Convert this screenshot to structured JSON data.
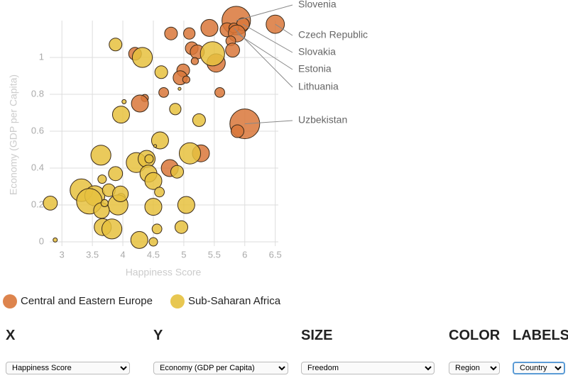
{
  "chart_data": {
    "type": "scatter",
    "x_label": "Happiness Score",
    "y_label": "Economy (GDP per Capita)",
    "xlim": [
      2.8,
      6.55
    ],
    "ylim": [
      0,
      1.2
    ],
    "xticks": [
      3,
      3.5,
      4,
      4.5,
      5,
      5.5,
      6,
      6.5
    ],
    "yticks": [
      0,
      0.2,
      0.4,
      0.6,
      0.8,
      1
    ],
    "grid": true,
    "series": [
      {
        "name": "Central and Eastern Europe",
        "color": "#d9773a",
        "x": [
          5.86,
          6.5,
          5.42,
          5.71,
          5.97,
          5.82,
          5.87,
          5.77,
          5.09,
          4.79,
          5.13,
          5.22,
          5.18,
          5.53,
          5.8,
          4.2,
          4.99,
          4.94,
          5.04,
          5.59,
          4.67,
          4.36,
          4.28,
          6.0,
          5.88,
          5.28,
          4.77
        ],
        "values": [
          1.2,
          1.18,
          1.16,
          1.15,
          1.18,
          1.16,
          1.13,
          1.09,
          1.13,
          1.13,
          1.05,
          1.03,
          0.98,
          0.97,
          1.04,
          1.02,
          0.93,
          0.89,
          0.88,
          0.81,
          0.81,
          0.78,
          0.75,
          0.64,
          0.6,
          0.48,
          0.4
        ],
        "sizes": [
          0.67,
          0.43,
          0.4,
          0.33,
          0.3,
          0.23,
          0.4,
          0.23,
          0.27,
          0.3,
          0.3,
          0.33,
          0.17,
          0.43,
          0.33,
          0.3,
          0.3,
          0.33,
          0.17,
          0.23,
          0.23,
          0.17,
          0.4,
          0.7,
          0.3,
          0.4,
          0.4
        ]
      },
      {
        "name": "Sub-Saharan Africa",
        "color": "#e6c13e",
        "x": [
          5.47,
          4.32,
          3.88,
          4.63,
          4.93,
          4.86,
          5.25,
          3.97,
          4.02,
          4.61,
          4.53,
          3.64,
          5.1,
          4.22,
          4.39,
          4.43,
          4.42,
          4.5,
          4.89,
          3.88,
          3.66,
          3.32,
          3.54,
          3.77,
          3.97,
          3.92,
          3.96,
          3.45,
          3.65,
          3.7,
          4.6,
          4.5,
          5.04,
          2.81,
          3.67,
          3.82,
          4.56,
          4.96,
          4.27,
          4.5,
          2.89
        ],
        "values": [
          1.02,
          1.0,
          1.07,
          0.92,
          0.83,
          0.72,
          0.66,
          0.69,
          0.76,
          0.55,
          0.52,
          0.47,
          0.48,
          0.43,
          0.45,
          0.45,
          0.37,
          0.33,
          0.38,
          0.37,
          0.34,
          0.28,
          0.25,
          0.28,
          0.24,
          0.2,
          0.26,
          0.22,
          0.17,
          0.21,
          0.27,
          0.19,
          0.2,
          0.21,
          0.08,
          0.07,
          0.07,
          0.08,
          0.01,
          0.0,
          0.01
        ],
        "sizes": [
          0.57,
          0.47,
          0.3,
          0.3,
          0.07,
          0.27,
          0.3,
          0.4,
          0.1,
          0.4,
          0.07,
          0.47,
          0.5,
          0.47,
          0.4,
          0.2,
          0.4,
          0.4,
          0.3,
          0.33,
          0.2,
          0.53,
          0.47,
          0.3,
          0.2,
          0.47,
          0.37,
          0.6,
          0.37,
          0.17,
          0.23,
          0.4,
          0.4,
          0.33,
          0.4,
          0.47,
          0.23,
          0.3,
          0.4,
          0.2,
          0.1
        ]
      }
    ],
    "annotations": [
      {
        "text": "Slovenia",
        "x": 5.86,
        "y": 1.2
      },
      {
        "text": "Czech Republic",
        "x": 6.5,
        "y": 1.18
      },
      {
        "text": "Slovakia",
        "x": 5.97,
        "y": 1.18
      },
      {
        "text": "Estonia",
        "x": 5.87,
        "y": 1.13
      },
      {
        "text": "Lithuania",
        "x": 5.82,
        "y": 1.16
      },
      {
        "text": "Uzbekistan",
        "x": 6.0,
        "y": 0.64
      }
    ]
  },
  "controls": [
    {
      "label": "X",
      "value": "Happiness Score"
    },
    {
      "label": "Y",
      "value": "Economy (GDP per Capita)"
    },
    {
      "label": "SIZE",
      "value": "Freedom"
    },
    {
      "label": "COLOR",
      "value": "Region"
    },
    {
      "label": "LABELS",
      "value": "Country"
    }
  ]
}
